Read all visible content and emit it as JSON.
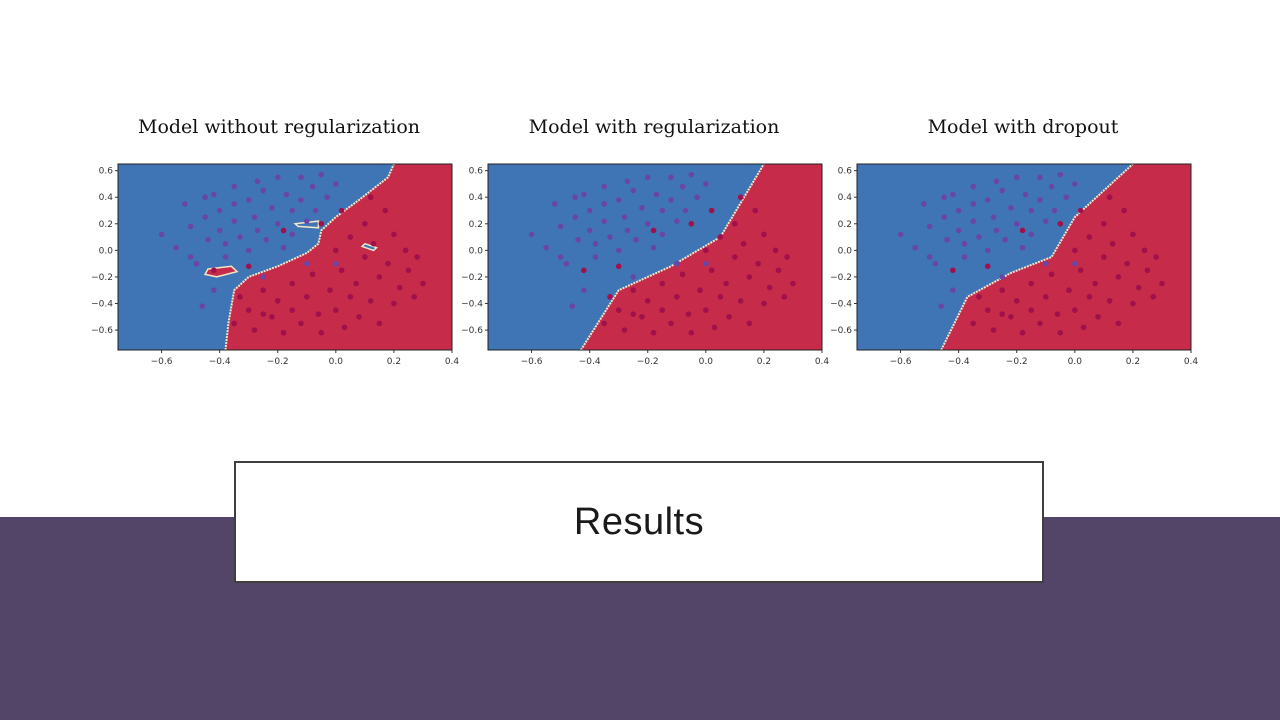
{
  "slide": {
    "title": "Results",
    "band_color": "#524568"
  },
  "colors": {
    "blue_region": "#3f75b5",
    "red_region": "#c62b4a",
    "blue_point": "#6a45a8",
    "red_point": "#a0104b",
    "boundary": "#f3e7c6"
  },
  "chart_data": [
    {
      "type": "scatter",
      "title": "Model without regularization",
      "xlim": [
        -0.75,
        0.4
      ],
      "ylim": [
        -0.75,
        0.65
      ],
      "xticks": [
        "−0.6",
        "−0.4",
        "−0.2",
        "0.0",
        "0.2",
        "0.4"
      ],
      "yticks": [
        "0.6",
        "0.4",
        "0.2",
        "0.0",
        "−0.2",
        "−0.4",
        "−0.6"
      ],
      "decision_boundary": [
        [
          -0.38,
          -0.75
        ],
        [
          -0.37,
          -0.55
        ],
        [
          -0.35,
          -0.3
        ],
        [
          -0.3,
          -0.2
        ],
        [
          -0.2,
          -0.12
        ],
        [
          -0.1,
          -0.02
        ],
        [
          -0.06,
          0.05
        ],
        [
          -0.05,
          0.15
        ],
        [
          0.0,
          0.25
        ],
        [
          0.08,
          0.38
        ],
        [
          0.18,
          0.55
        ],
        [
          0.2,
          0.65
        ]
      ],
      "decision_region_islands": [
        {
          "region": "red",
          "points": [
            [
              -0.44,
              -0.14
            ],
            [
              -0.36,
              -0.12
            ],
            [
              -0.34,
              -0.16
            ],
            [
              -0.41,
              -0.2
            ],
            [
              -0.45,
              -0.18
            ]
          ]
        },
        {
          "region": "blue",
          "points": [
            [
              -0.14,
              0.2
            ],
            [
              -0.06,
              0.22
            ],
            [
              -0.06,
              0.17
            ],
            [
              -0.13,
              0.18
            ]
          ]
        },
        {
          "region": "blue",
          "points": [
            [
              0.1,
              0.05
            ],
            [
              0.14,
              0.02
            ],
            [
              0.13,
              0.0
            ],
            [
              0.09,
              0.03
            ]
          ]
        }
      ]
    },
    {
      "type": "scatter",
      "title": "Model with regularization",
      "xlim": [
        -0.75,
        0.4
      ],
      "ylim": [
        -0.75,
        0.65
      ],
      "xticks": [
        "−0.6",
        "−0.4",
        "−0.2",
        "0.0",
        "0.2",
        "0.4"
      ],
      "yticks": [
        "0.6",
        "0.4",
        "0.2",
        "0.0",
        "−0.2",
        "−0.4",
        "−0.6"
      ],
      "decision_boundary": [
        [
          -0.43,
          -0.75
        ],
        [
          -0.3,
          -0.3
        ],
        [
          -0.12,
          -0.12
        ],
        [
          0.05,
          0.1
        ],
        [
          0.2,
          0.65
        ]
      ],
      "decision_region_islands": []
    },
    {
      "type": "scatter",
      "title": "Model with dropout",
      "xlim": [
        -0.75,
        0.4
      ],
      "ylim": [
        -0.75,
        0.65
      ],
      "xticks": [
        "−0.6",
        "−0.4",
        "−0.2",
        "0.0",
        "0.2",
        "0.4"
      ],
      "yticks": [
        "0.6",
        "0.4",
        "0.2",
        "0.0",
        "−0.2",
        "−0.4",
        "−0.6"
      ],
      "decision_boundary": [
        [
          -0.46,
          -0.75
        ],
        [
          -0.37,
          -0.35
        ],
        [
          -0.22,
          -0.17
        ],
        [
          -0.08,
          -0.05
        ],
        [
          0.0,
          0.25
        ],
        [
          0.2,
          0.65
        ]
      ],
      "decision_region_islands": []
    }
  ],
  "shared_points": {
    "blue": [
      [
        -0.6,
        0.12
      ],
      [
        -0.55,
        0.02
      ],
      [
        -0.52,
        0.35
      ],
      [
        -0.5,
        0.18
      ],
      [
        -0.48,
        -0.1
      ],
      [
        -0.5,
        -0.05
      ],
      [
        -0.45,
        0.25
      ],
      [
        -0.44,
        0.08
      ],
      [
        -0.42,
        0.42
      ],
      [
        -0.4,
        0.3
      ],
      [
        -0.4,
        0.15
      ],
      [
        -0.38,
        0.05
      ],
      [
        -0.38,
        -0.05
      ],
      [
        -0.35,
        0.48
      ],
      [
        -0.35,
        0.22
      ],
      [
        -0.33,
        0.1
      ],
      [
        -0.3,
        0.38
      ],
      [
        -0.3,
        0.0
      ],
      [
        -0.28,
        0.25
      ],
      [
        -0.27,
        0.15
      ],
      [
        -0.25,
        0.45
      ],
      [
        -0.24,
        0.08
      ],
      [
        -0.22,
        0.32
      ],
      [
        -0.2,
        0.55
      ],
      [
        -0.2,
        0.2
      ],
      [
        -0.18,
        0.02
      ],
      [
        -0.17,
        0.42
      ],
      [
        -0.15,
        0.3
      ],
      [
        -0.15,
        0.12
      ],
      [
        -0.12,
        0.55
      ],
      [
        -0.12,
        0.38
      ],
      [
        -0.1,
        0.22
      ],
      [
        -0.08,
        0.48
      ],
      [
        -0.07,
        0.3
      ],
      [
        -0.05,
        0.57
      ],
      [
        -0.03,
        0.4
      ],
      [
        0.0,
        0.5
      ],
      [
        -0.42,
        -0.3
      ],
      [
        -0.46,
        -0.42
      ],
      [
        -0.25,
        -0.2
      ],
      [
        -0.1,
        -0.1
      ],
      [
        0.0,
        -0.1
      ],
      [
        -0.35,
        0.35
      ],
      [
        -0.27,
        0.52
      ],
      [
        -0.45,
        0.4
      ]
    ],
    "red": [
      [
        -0.35,
        -0.55
      ],
      [
        -0.33,
        -0.35
      ],
      [
        -0.3,
        -0.45
      ],
      [
        -0.28,
        -0.6
      ],
      [
        -0.25,
        -0.3
      ],
      [
        -0.22,
        -0.5
      ],
      [
        -0.2,
        -0.38
      ],
      [
        -0.18,
        -0.62
      ],
      [
        -0.15,
        -0.25
      ],
      [
        -0.15,
        -0.45
      ],
      [
        -0.12,
        -0.55
      ],
      [
        -0.1,
        -0.35
      ],
      [
        -0.08,
        -0.18
      ],
      [
        -0.06,
        -0.48
      ],
      [
        -0.05,
        -0.62
      ],
      [
        -0.02,
        -0.3
      ],
      [
        0.0,
        -0.45
      ],
      [
        0.0,
        0.0
      ],
      [
        0.02,
        -0.15
      ],
      [
        0.03,
        -0.58
      ],
      [
        0.05,
        0.1
      ],
      [
        0.05,
        -0.35
      ],
      [
        0.07,
        -0.25
      ],
      [
        0.08,
        -0.5
      ],
      [
        0.1,
        0.2
      ],
      [
        0.1,
        -0.05
      ],
      [
        0.12,
        -0.38
      ],
      [
        0.13,
        0.05
      ],
      [
        0.15,
        -0.2
      ],
      [
        0.15,
        -0.55
      ],
      [
        0.17,
        0.3
      ],
      [
        0.18,
        -0.1
      ],
      [
        0.2,
        -0.4
      ],
      [
        0.2,
        0.12
      ],
      [
        0.22,
        -0.28
      ],
      [
        0.24,
        0.0
      ],
      [
        0.25,
        -0.15
      ],
      [
        0.27,
        -0.35
      ],
      [
        0.28,
        -0.05
      ],
      [
        0.3,
        -0.25
      ],
      [
        -0.42,
        -0.15
      ],
      [
        -0.3,
        -0.12
      ],
      [
        -0.25,
        -0.48
      ],
      [
        -0.05,
        0.2
      ],
      [
        0.02,
        0.3
      ],
      [
        0.12,
        0.4
      ],
      [
        -0.18,
        0.15
      ]
    ]
  }
}
